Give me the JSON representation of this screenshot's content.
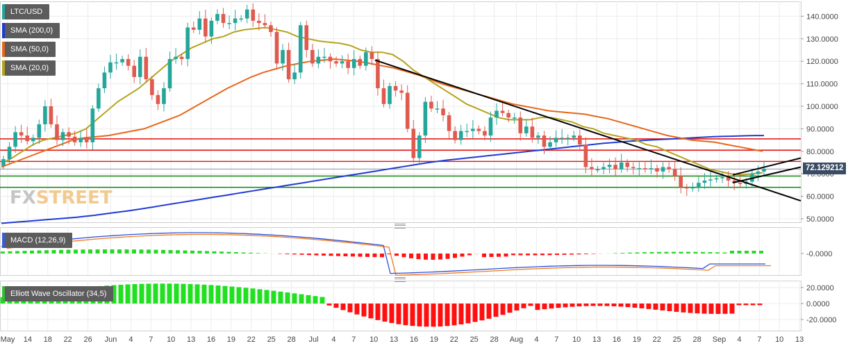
{
  "chart_data": [
    {
      "type": "candlestick",
      "title": "LTC/USD",
      "ylim": [
        47,
        148
      ],
      "y_ticks": [
        "140.0000",
        "130.0000",
        "120.0000",
        "110.0000",
        "100.0000",
        "90.0000",
        "80.0000",
        "70.0000",
        "60.0000",
        "50.0000"
      ],
      "x_tick_labels": [
        "May",
        "14",
        "18",
        "22",
        "26",
        "Jun",
        "4",
        "7",
        "10",
        "13",
        "16",
        "19",
        "22",
        "25",
        "28",
        "Jul",
        "4",
        "7",
        "10",
        "13",
        "16",
        "19",
        "22",
        "25",
        "28",
        "Aug",
        "4",
        "7",
        "10",
        "13",
        "16",
        "19",
        "22",
        "25",
        "28",
        "Sep",
        "4",
        "7",
        "10",
        "13"
      ],
      "last_price": "72.129212",
      "legend": [
        {
          "label": "LTC/USD",
          "color": "#26a69a"
        },
        {
          "label": "SMA (200,0)",
          "color": "#1e3ad4"
        },
        {
          "label": "SMA (50,0)",
          "color": "#e8651a"
        },
        {
          "label": "SMA (20,0)",
          "color": "#b5a31c"
        }
      ],
      "closes": [
        76.5,
        82,
        88.5,
        87,
        84.5,
        86,
        92,
        100,
        92,
        85,
        88.5,
        86.5,
        84,
        86,
        84,
        99,
        108,
        115,
        119.5,
        119.5,
        121,
        118,
        113,
        122,
        112,
        105,
        101,
        108,
        121,
        122,
        121,
        135,
        134,
        139,
        131,
        138,
        141,
        137,
        137,
        139,
        139,
        143,
        138,
        137,
        136,
        133,
        119,
        125,
        112,
        115,
        136,
        125,
        119,
        122,
        122,
        120,
        119,
        120,
        117,
        121,
        118,
        124,
        121,
        108,
        101,
        109,
        107,
        106,
        90,
        77,
        87,
        102,
        99,
        99,
        96,
        89,
        85,
        89,
        89,
        90,
        89,
        87,
        95,
        98,
        97,
        95,
        95,
        88,
        91,
        86,
        87,
        82,
        84,
        86,
        86,
        86,
        87,
        83,
        73,
        72,
        72,
        73,
        74,
        72,
        75,
        73,
        72.5,
        72.5,
        72,
        72.5,
        71,
        73,
        72,
        69,
        64,
        63.5,
        64,
        66,
        67,
        67.5,
        68,
        68.5,
        67,
        66,
        65.5,
        66.5,
        70,
        71,
        72.13
      ],
      "series": [
        {
          "name": "SMA (200,0)",
          "values": [
            48,
            48.3,
            48.6,
            48.9,
            49.2,
            49.5,
            49.8,
            50.1,
            50.4,
            50.7,
            51.1,
            51.5,
            52,
            52.5,
            53,
            53.5,
            54,
            54.6,
            55.2,
            55.8,
            56.4,
            57,
            57.6,
            58.2,
            58.8,
            59.4,
            60,
            60.6,
            61.2,
            61.8,
            62.4,
            63,
            63.6,
            64.2,
            64.8,
            65.4,
            66,
            66.6,
            67.2,
            67.8,
            68.4,
            69,
            69.6,
            70.2,
            70.8,
            71.4,
            72,
            72.6,
            73.2,
            73.8,
            74.4,
            75,
            75.5,
            76,
            76.4,
            76.8,
            77.2,
            77.6,
            78,
            78.4,
            78.8,
            79.2,
            79.6,
            80,
            80.4,
            80.8,
            81.2,
            81.6,
            82,
            82.4,
            82.8,
            83.2,
            83.6,
            83.9,
            84.2,
            84.5,
            84.7,
            84.9,
            85.1,
            85.3,
            85.5,
            85.7,
            85.9,
            86.1,
            86.3,
            86.5,
            86.6,
            86.7,
            86.8,
            86.9,
            87,
            87
          ]
        },
        {
          "name": "SMA (50,0)",
          "values": [
            73,
            75,
            77,
            79,
            81,
            83,
            85,
            86,
            86.5,
            87,
            88,
            89,
            90,
            92,
            94,
            96,
            99,
            102,
            105,
            108,
            110.5,
            113,
            115,
            116.5,
            118,
            119,
            120,
            120.5,
            121,
            120.5,
            120,
            119,
            118,
            117,
            115.5,
            114,
            112,
            110,
            108.5,
            107,
            105.5,
            104,
            102.5,
            101,
            100,
            99,
            98,
            97.5,
            97,
            96.5,
            95.5,
            94.5,
            93,
            91.5,
            90,
            88.5,
            87,
            86,
            85,
            84.5,
            84,
            83,
            82,
            81,
            80
          ]
        },
        {
          "name": "SMA (20,0)",
          "values": [
            74.5,
            77,
            80,
            83,
            85,
            86,
            87,
            88,
            90,
            94,
            98,
            102,
            105,
            108,
            112,
            116,
            120,
            123,
            126,
            128,
            130,
            131,
            133,
            134,
            134.5,
            135,
            134,
            133,
            131,
            130,
            129,
            128.5,
            128,
            127,
            125,
            124,
            124,
            123,
            120,
            116,
            113,
            110,
            107,
            104,
            101,
            99,
            97,
            95,
            94,
            94,
            94,
            95,
            95,
            94,
            93,
            91,
            90,
            88,
            87,
            86,
            85,
            83,
            82,
            80,
            78,
            76,
            74,
            72,
            71,
            70,
            69.5,
            70,
            70.5
          ]
        }
      ]
    },
    {
      "type": "line+bar",
      "title": "MACD (12,26,9)",
      "y_ticks": [
        "-0.0000"
      ],
      "legend_color": "#3b5bd6"
    },
    {
      "type": "bar",
      "title": "Elliott Wave Oscillator (34,5)",
      "y_ticks": [
        "20.0000",
        "0.0000",
        "-20.0000"
      ],
      "ylim": [
        -31,
        26
      ],
      "legend_color": "#2fbf2f"
    }
  ],
  "watermark": {
    "part1": "FX",
    "part2": "STREET"
  },
  "colors": {
    "up": "#26a69a",
    "down": "#e05a4f",
    "hline_red": "#e61b1b",
    "hline_green": "#1f8f1f",
    "trend": "#000000"
  }
}
